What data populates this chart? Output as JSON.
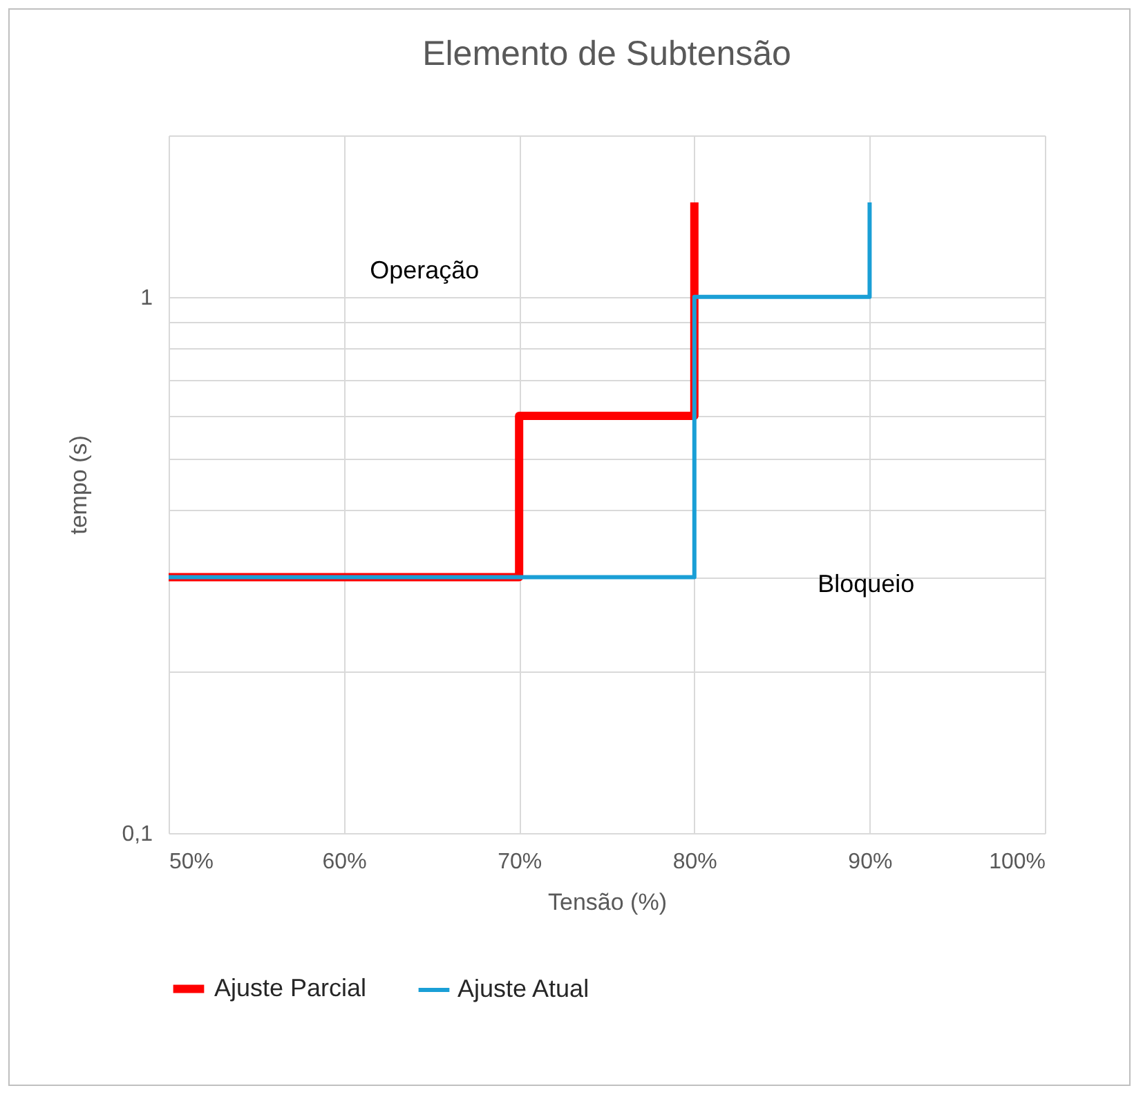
{
  "chart_data": {
    "type": "line",
    "title": "Elemento de Subtensão",
    "xlabel": "Tensão (%)",
    "ylabel": "tempo (s)",
    "series": [
      {
        "name": "Ajuste Parcial",
        "color": "#ff0000",
        "x": [
          50,
          70,
          70,
          80,
          80
        ],
        "values": [
          0.3,
          0.3,
          0.6,
          0.6,
          1.5
        ]
      },
      {
        "name": "Ajuste Atual",
        "color": "#1a9fd6",
        "x": [
          50,
          80,
          80,
          90,
          90
        ],
        "values": [
          0.3,
          0.3,
          1,
          1,
          1.5
        ]
      }
    ],
    "xlim": [
      50,
      100
    ],
    "xticks": [
      {
        "value": 50,
        "label": "50%"
      },
      {
        "value": 60,
        "label": "60%"
      },
      {
        "value": 70,
        "label": "70%"
      },
      {
        "value": 80,
        "label": "80%"
      },
      {
        "value": 90,
        "label": "90%"
      },
      {
        "value": 100,
        "label": "100%"
      }
    ],
    "ylim": [
      0.1,
      2
    ],
    "log": "y",
    "yticks": [
      {
        "value": 0.1,
        "label": "0,1"
      },
      {
        "value": 0.2,
        "label": null
      },
      {
        "value": 0.3,
        "label": null
      },
      {
        "value": 0.4,
        "label": null
      },
      {
        "value": 0.5,
        "label": null
      },
      {
        "value": 0.6,
        "label": null
      },
      {
        "value": 0.7,
        "label": null
      },
      {
        "value": 0.8,
        "label": null
      },
      {
        "value": 0.9,
        "label": null
      },
      {
        "value": 1,
        "label": "1"
      },
      {
        "value": 2,
        "label": null
      }
    ],
    "annotations": [
      "Operação",
      "Bloqueio"
    ],
    "grid": true,
    "legend": "bottom",
    "marker": "none",
    "line_style": "solid"
  }
}
